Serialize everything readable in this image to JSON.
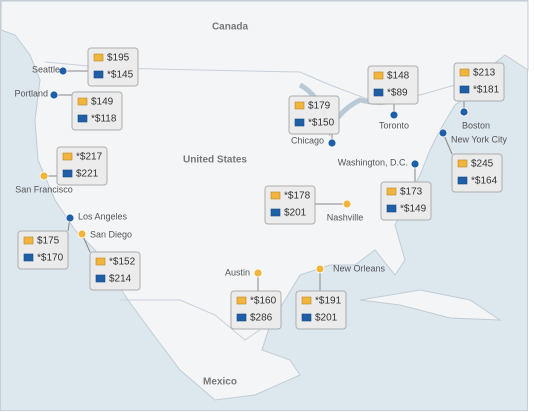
{
  "countries": [
    "Canada",
    "United States",
    "Mexico"
  ],
  "cities": [
    {
      "name": "Seattle",
      "marker": "#1f5fa8",
      "prices": [
        "$195",
        "*$145"
      ]
    },
    {
      "name": "Portland",
      "marker": "#1f5fa8",
      "prices": [
        "$149",
        "*$118"
      ]
    },
    {
      "name": "San Francisco",
      "marker": "#f1b43c",
      "prices": [
        "*$217",
        "$221"
      ]
    },
    {
      "name": "Los Angeles",
      "marker": "#1f5fa8",
      "prices": [
        "$175",
        "*$170"
      ]
    },
    {
      "name": "San Diego",
      "marker": "#f1b43c",
      "prices": [
        "*$152",
        "$214"
      ]
    },
    {
      "name": "Chicago",
      "marker": "#1f5fa8",
      "prices": [
        "$179",
        "*$150"
      ]
    },
    {
      "name": "Toronto",
      "marker": "#1f5fa8",
      "prices": [
        "$148",
        "*$89"
      ]
    },
    {
      "name": "Boston",
      "marker": "#1f5fa8",
      "prices": [
        "$213",
        "*$181"
      ]
    },
    {
      "name": "New York City",
      "marker": "#1f5fa8",
      "prices": [
        "$245",
        "*$164"
      ]
    },
    {
      "name": "Washington, D.C.",
      "marker": "#1f5fa8",
      "prices": [
        "$173",
        "*$149"
      ]
    },
    {
      "name": "Nashville",
      "marker": "#f1b43c",
      "prices": [
        "*$178",
        "$201"
      ]
    },
    {
      "name": "Austin",
      "marker": "#f1b43c",
      "prices": [
        "*$160",
        "$286"
      ]
    },
    {
      "name": "New Orleans",
      "marker": "#f1b43c",
      "prices": [
        "*$191",
        "$201"
      ]
    }
  ]
}
